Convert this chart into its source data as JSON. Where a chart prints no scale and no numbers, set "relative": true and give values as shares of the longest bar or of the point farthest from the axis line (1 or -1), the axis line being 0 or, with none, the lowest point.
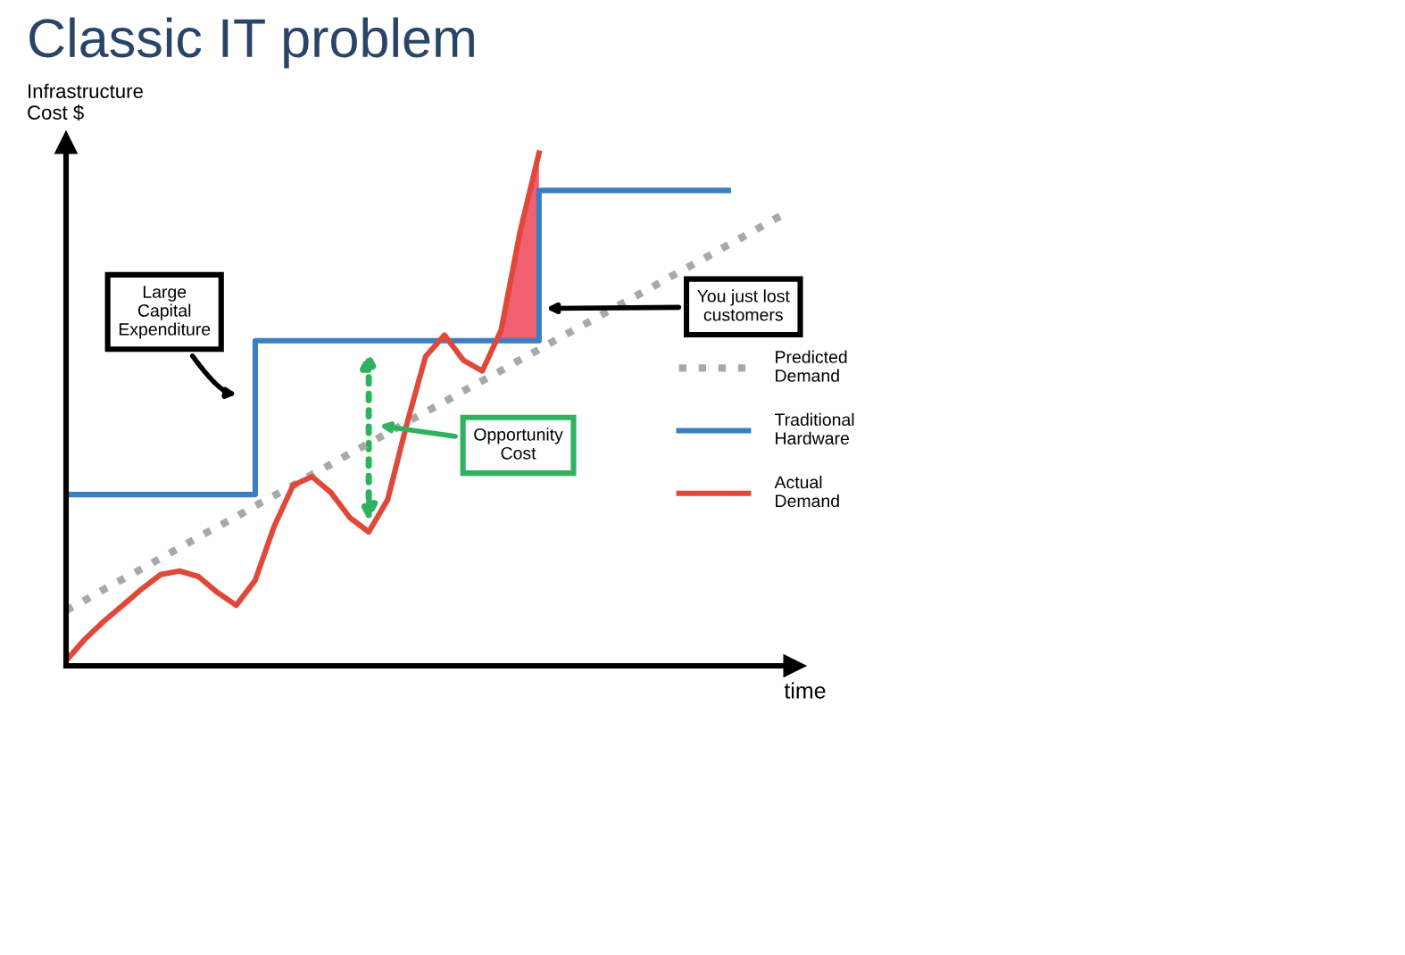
{
  "chart_data": {
    "type": "line",
    "title": "Classic IT problem",
    "ylabel": "Infrastructure Cost $",
    "xlabel": "time",
    "relative": true,
    "legend": "right",
    "grid": false,
    "categories": [
      null,
      null,
      null,
      null,
      null,
      null,
      null,
      null,
      null,
      null,
      null,
      null,
      null,
      null,
      null,
      null,
      null,
      null,
      null,
      null,
      null,
      null,
      null,
      null,
      null,
      null,
      null,
      null,
      null,
      null,
      null,
      null,
      null,
      null,
      null,
      null,
      null,
      null,
      null
    ],
    "series": [
      {
        "name": "Predicted Demand",
        "color": "#a8a8a8",
        "line_style": "dotted",
        "values": [
          0.108,
          0.128,
          0.149,
          0.169,
          0.189,
          0.21,
          0.23,
          0.251,
          0.271,
          0.291,
          0.312,
          0.332,
          0.352,
          0.373,
          0.393,
          0.414,
          0.434,
          0.454,
          0.475,
          0.495,
          0.515,
          0.536,
          0.556,
          0.576,
          0.597,
          0.617,
          0.638,
          0.658,
          0.678,
          0.699,
          0.719,
          0.739,
          0.76,
          0.78,
          0.8,
          0.821,
          0.841,
          0.862,
          0.882
        ]
      },
      {
        "name": "Traditional Hardware",
        "type": "step",
        "color": "#3a7fc1",
        "values": [
          0.334,
          0.334,
          0.334,
          0.334,
          0.334,
          0.334,
          0.334,
          0.334,
          0.334,
          0.334,
          0.634,
          0.634,
          0.634,
          0.634,
          0.634,
          0.634,
          0.634,
          0.634,
          0.634,
          0.634,
          0.634,
          0.634,
          0.634,
          0.634,
          0.634,
          0.927,
          0.927,
          0.927,
          0.927,
          0.927,
          0.927,
          0.927,
          0.927,
          0.927,
          0.927,
          0.927,
          null,
          null,
          null
        ]
      },
      {
        "name": "Actual Demand",
        "color": "#e0483a",
        "values": [
          0.01,
          0.052,
          0.087,
          0.118,
          0.15,
          0.178,
          0.185,
          0.174,
          0.143,
          0.118,
          0.167,
          0.272,
          0.352,
          0.369,
          0.338,
          0.289,
          0.261,
          0.324,
          0.47,
          0.603,
          0.645,
          0.596,
          0.575,
          0.655,
          0.847,
          1.0,
          null,
          null,
          null,
          null,
          null,
          null,
          null,
          null,
          null,
          null,
          null,
          null,
          null
        ]
      }
    ],
    "annotations": [
      "Large Capital Expenditure",
      "Opportunity Cost",
      "You just lost customers"
    ]
  }
}
